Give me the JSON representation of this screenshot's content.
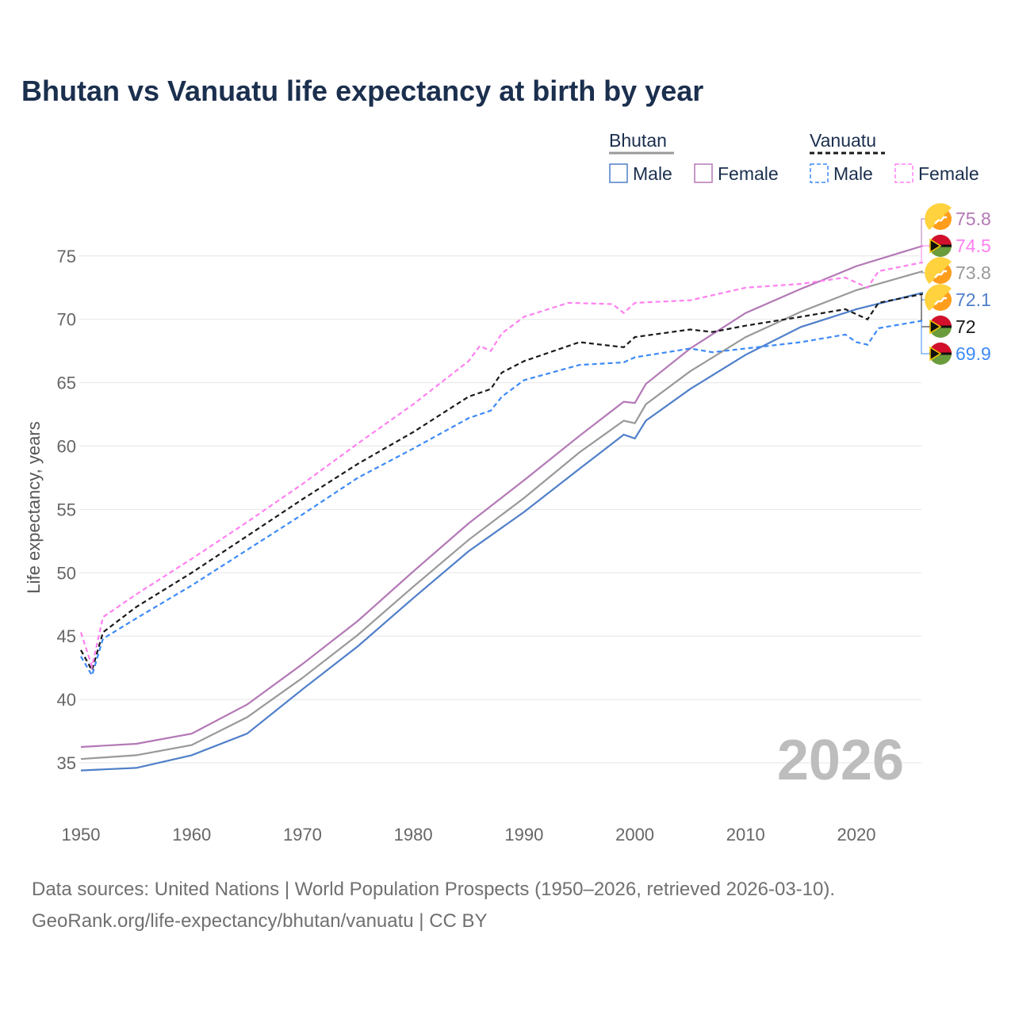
{
  "chart_data": {
    "type": "line",
    "title": "Bhutan vs Vanuatu life expectancy at birth by year",
    "xlabel": "",
    "ylabel": "Life expectancy, years",
    "xlim": [
      1950,
      2026
    ],
    "ylim": [
      32,
      79
    ],
    "x_ticks": [
      1950,
      1960,
      1970,
      1980,
      1990,
      2000,
      2010,
      2020
    ],
    "y_ticks": [
      35,
      40,
      45,
      50,
      55,
      60,
      65,
      70,
      75
    ],
    "grid": "horizontal",
    "legend": {
      "placement": "top-right",
      "groups": [
        {
          "label": "Bhutan",
          "items": [
            "Male",
            "Female"
          ]
        },
        {
          "label": "Vanuatu",
          "items": [
            "Male",
            "Female"
          ]
        }
      ]
    },
    "year_watermark": "2026",
    "series": [
      {
        "name": "Bhutan total",
        "country": "Bhutan",
        "color": "#999999",
        "dashed": false,
        "x": [
          1950,
          1955,
          1960,
          1965,
          1970,
          1975,
          1980,
          1985,
          1990,
          1995,
          1999,
          2000,
          2001,
          2005,
          2010,
          2015,
          2020,
          2026
        ],
        "y": [
          35.3,
          35.6,
          36.4,
          38.6,
          41.7,
          45.1,
          48.9,
          52.6,
          55.9,
          59.5,
          62.0,
          61.8,
          63.3,
          65.9,
          68.6,
          70.6,
          72.3,
          73.8
        ],
        "end_label": "73.8"
      },
      {
        "name": "Bhutan male",
        "country": "Bhutan",
        "color": "#4f7fc9",
        "dashed": false,
        "x": [
          1950,
          1955,
          1960,
          1965,
          1970,
          1975,
          1980,
          1985,
          1990,
          1995,
          1999,
          2000,
          2001,
          2005,
          2010,
          2015,
          2020,
          2026
        ],
        "y": [
          34.4,
          34.6,
          35.6,
          37.3,
          40.8,
          44.2,
          48.0,
          51.7,
          54.8,
          58.2,
          60.9,
          60.6,
          62.0,
          64.5,
          67.2,
          69.4,
          70.8,
          72.1
        ],
        "end_label": "72.1"
      },
      {
        "name": "Bhutan female",
        "country": "Bhutan",
        "color": "#b378b5",
        "dashed": false,
        "x": [
          1950,
          1955,
          1960,
          1965,
          1970,
          1975,
          1980,
          1985,
          1990,
          1995,
          1999,
          2000,
          2001,
          2005,
          2010,
          2015,
          2020,
          2026
        ],
        "y": [
          36.25,
          36.5,
          37.3,
          39.6,
          42.8,
          46.2,
          50.1,
          53.9,
          57.3,
          60.8,
          63.5,
          63.4,
          64.9,
          67.7,
          70.5,
          72.4,
          74.2,
          75.8
        ],
        "end_label": "75.8"
      },
      {
        "name": "Vanuatu total",
        "country": "Vanuatu",
        "color": "#1a1a1a",
        "dashed": true,
        "x": [
          1950,
          1951,
          1952,
          1955,
          1960,
          1965,
          1970,
          1975,
          1980,
          1985,
          1987,
          1988,
          1990,
          1995,
          1999,
          2000,
          2005,
          2007,
          2010,
          2015,
          2019,
          2021,
          2022,
          2026
        ],
        "y": [
          43.9,
          42.3,
          45.3,
          47.3,
          50.0,
          52.9,
          55.8,
          58.6,
          61.1,
          63.9,
          64.5,
          65.8,
          66.7,
          68.2,
          67.8,
          68.6,
          69.2,
          69.0,
          69.5,
          70.2,
          70.8,
          70.0,
          71.3,
          72.0
        ],
        "end_label": "72"
      },
      {
        "name": "Vanuatu male",
        "country": "Vanuatu",
        "color": "#3d8af7",
        "dashed": true,
        "x": [
          1950,
          1951,
          1952,
          1955,
          1960,
          1965,
          1970,
          1975,
          1980,
          1985,
          1987,
          1988,
          1990,
          1995,
          1999,
          2000,
          2005,
          2007,
          2010,
          2015,
          2019,
          2020,
          2021,
          2022,
          2026
        ],
        "y": [
          43.4,
          41.9,
          44.8,
          46.4,
          49.0,
          51.8,
          54.6,
          57.5,
          59.8,
          62.2,
          62.8,
          63.9,
          65.2,
          66.4,
          66.6,
          67.0,
          67.7,
          67.4,
          67.7,
          68.2,
          68.8,
          68.2,
          68.0,
          69.3,
          69.9
        ],
        "end_label": "69.9"
      },
      {
        "name": "Vanuatu female",
        "country": "Vanuatu",
        "color": "#ff80f0",
        "dashed": true,
        "x": [
          1950,
          1951,
          1952,
          1955,
          1960,
          1965,
          1970,
          1975,
          1980,
          1985,
          1986,
          1987,
          1988,
          1990,
          1994,
          1998,
          1999,
          2000,
          2005,
          2010,
          2015,
          2019,
          2021,
          2022,
          2026
        ],
        "y": [
          45.3,
          42.6,
          46.5,
          48.3,
          51.1,
          54.0,
          57.0,
          60.2,
          63.3,
          66.7,
          67.9,
          67.5,
          68.9,
          70.2,
          71.3,
          71.2,
          70.5,
          71.3,
          71.5,
          72.5,
          72.8,
          73.3,
          72.5,
          73.8,
          74.5
        ],
        "end_label": "74.5"
      }
    ]
  },
  "footer": {
    "line1": "Data sources: United Nations | World Population Prospects (1950–2026, retrieved 2026-03-10).",
    "line2": "GeoRank.org/life-expectancy/bhutan/vanuatu | CC BY"
  }
}
